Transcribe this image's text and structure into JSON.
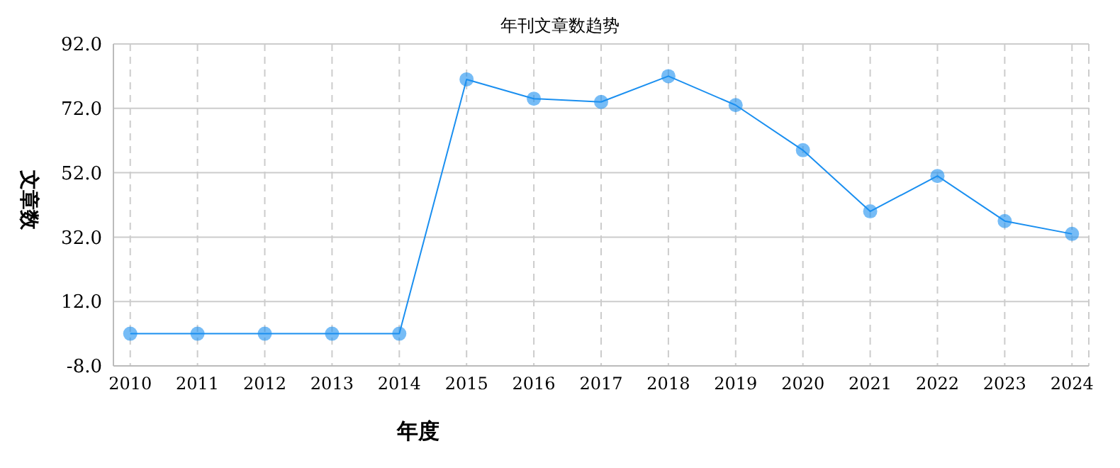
{
  "chart_data": {
    "type": "line",
    "title": "年刊文章数趋势",
    "xlabel": "年度",
    "ylabel": "文章数",
    "categories": [
      "2010",
      "2011",
      "2012",
      "2013",
      "2014",
      "2015",
      "2016",
      "2017",
      "2018",
      "2019",
      "2020",
      "2021",
      "2022",
      "2023",
      "2024"
    ],
    "series": [
      {
        "color": "#1a8ff0",
        "values": [
          2,
          2,
          2,
          2,
          2,
          81,
          75,
          74,
          82,
          73,
          59,
          40,
          51,
          37,
          33
        ]
      }
    ],
    "ylim": [
      -8,
      92
    ],
    "yticks": [
      {
        "value": -8,
        "label": "-8.0"
      },
      {
        "value": 12,
        "label": "12.0"
      },
      {
        "value": 32,
        "label": "32.0"
      },
      {
        "value": 52,
        "label": "52.0"
      },
      {
        "value": 72,
        "label": "72.0"
      },
      {
        "value": 92,
        "label": "92.0"
      }
    ],
    "grid": true,
    "marker": "circle",
    "line_style": "solid",
    "legend": false
  }
}
